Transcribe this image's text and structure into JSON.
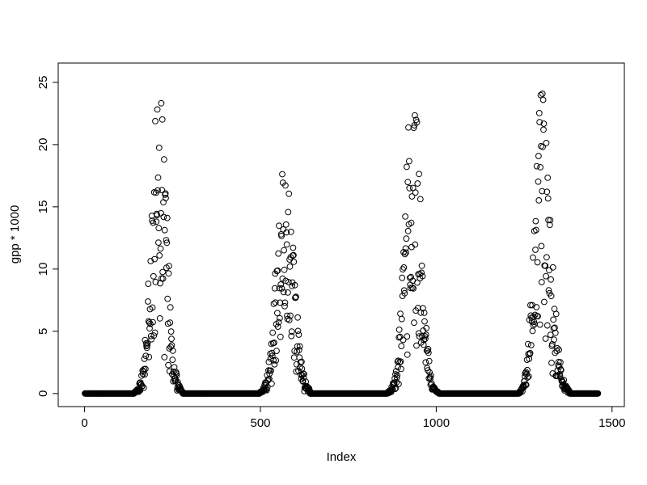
{
  "chart_data": {
    "type": "scatter",
    "title": "",
    "xlabel": "Index",
    "ylabel": "gpp * 1000",
    "xlim": [
      -75,
      1535
    ],
    "ylim": [
      -1.05,
      26.55
    ],
    "x_ticks": [
      0,
      500,
      1000,
      1500
    ],
    "x_tick_labels": [
      "0",
      "500",
      "1000",
      "1500"
    ],
    "y_ticks": [
      0,
      5,
      10,
      15,
      20,
      25
    ],
    "y_tick_labels": [
      "0",
      "5",
      "10",
      "15",
      "20",
      "25"
    ],
    "n_points": 1460,
    "grid": false,
    "legend": "none",
    "marker": {
      "shape": "open-circle",
      "color": "#000000",
      "radius": 3.4,
      "stroke_width": 1
    },
    "background": "#ffffff",
    "axis_color": "#000000",
    "seed": 42,
    "description": "Four seasonal peaks of GPP over a daily index; values are 0 outside growing seasons",
    "seasons": [
      {
        "rise_start": 148,
        "peak_center": 213,
        "fall_end": 272,
        "peak_value": 25.5,
        "sigma_rise": 22,
        "sigma_fall": 21
      },
      {
        "rise_start": 503,
        "peak_center": 566,
        "fall_end": 634,
        "peak_value": 20.3,
        "sigma_rise": 21,
        "sigma_fall": 26
      },
      {
        "rise_start": 868,
        "peak_center": 934,
        "fall_end": 1002,
        "peak_value": 25.5,
        "sigma_rise": 22,
        "sigma_fall": 22
      },
      {
        "rise_start": 1238,
        "peak_center": 1297,
        "fall_end": 1372,
        "peak_value": 24.5,
        "sigma_rise": 19,
        "sigma_fall": 27
      }
    ],
    "zero_segments": [
      [
        1,
        148
      ],
      [
        272,
        503
      ],
      [
        634,
        868
      ],
      [
        1002,
        1238
      ],
      [
        1372,
        1460
      ]
    ]
  }
}
